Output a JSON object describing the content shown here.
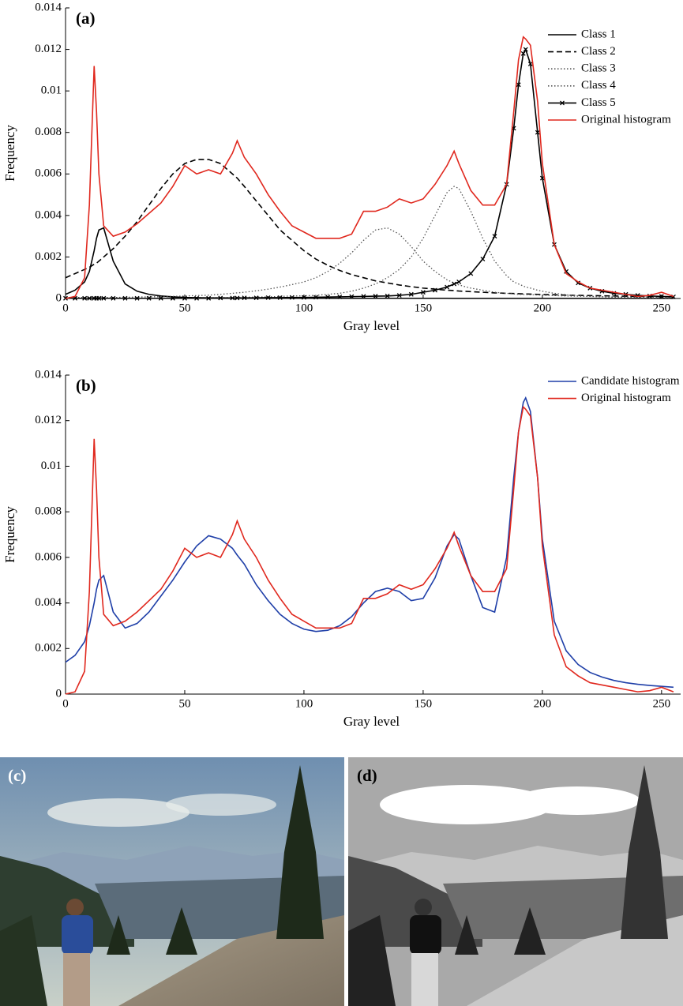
{
  "chart_data": [
    {
      "type": "line",
      "panel_label": "(a)",
      "xlabel": "Gray level",
      "ylabel": "Frequency",
      "xlim": [
        0,
        258
      ],
      "xticks": [
        0,
        50,
        100,
        150,
        200,
        250
      ],
      "ylim": [
        0,
        0.014
      ],
      "yticks": [
        0,
        0.002,
        0.004,
        0.006,
        0.008,
        0.01,
        0.012,
        0.014
      ],
      "legend": "upper right",
      "x": [
        0,
        4,
        8,
        10,
        12,
        13,
        14,
        16,
        20,
        25,
        30,
        35,
        40,
        45,
        50,
        55,
        60,
        65,
        70,
        72,
        75,
        80,
        85,
        90,
        95,
        100,
        105,
        110,
        115,
        120,
        125,
        130,
        135,
        140,
        145,
        150,
        155,
        160,
        163,
        165,
        170,
        175,
        180,
        185,
        188,
        190,
        192,
        193,
        195,
        198,
        200,
        205,
        210,
        215,
        220,
        225,
        230,
        235,
        240,
        245,
        250,
        255
      ],
      "series": [
        {
          "name": "Class 1",
          "color": "#000000",
          "style": "solid",
          "values": [
            0.0002,
            0.0004,
            0.0008,
            0.0013,
            0.0023,
            0.0029,
            0.0033,
            0.0034,
            0.0018,
            0.0007,
            0.00035,
            0.0002,
            0.00012,
            8e-05,
            5e-05,
            4e-05,
            3e-05,
            3e-05,
            2e-05,
            2e-05,
            1e-05,
            1e-05,
            1e-05,
            1e-05,
            1e-05,
            1e-05,
            1e-05,
            1e-05,
            1e-05,
            1e-05,
            1e-05,
            1e-05,
            1e-05,
            1e-05,
            1e-05,
            1e-05,
            1e-05,
            1e-05,
            5e-06,
            5e-06,
            5e-06,
            5e-06,
            5e-06,
            5e-06,
            5e-06,
            5e-06,
            5e-06,
            5e-06,
            5e-06,
            5e-06,
            5e-06,
            5e-06,
            5e-06,
            5e-06,
            5e-06,
            5e-06,
            5e-06,
            5e-06,
            5e-06,
            5e-06,
            5e-06,
            5e-06
          ]
        },
        {
          "name": "Class 2",
          "color": "#000000",
          "style": "dashed",
          "values": [
            0.001,
            0.0012,
            0.0014,
            0.0015,
            0.00165,
            0.0017,
            0.0018,
            0.002,
            0.0024,
            0.003,
            0.0037,
            0.0045,
            0.0053,
            0.006,
            0.0065,
            0.0067,
            0.0067,
            0.0065,
            0.006,
            0.0058,
            0.0054,
            0.0047,
            0.004,
            0.0033,
            0.0028,
            0.0023,
            0.0019,
            0.0016,
            0.00135,
            0.00115,
            0.001,
            0.00085,
            0.00075,
            0.00065,
            0.00057,
            0.0005,
            0.00045,
            0.0004,
            0.00038,
            0.00036,
            0.00033,
            0.0003,
            0.00027,
            0.00025,
            0.00024,
            0.00023,
            0.00022,
            0.00022,
            0.00021,
            0.0002,
            0.00019,
            0.00018,
            0.00016,
            0.00015,
            0.00014,
            0.00013,
            0.00012,
            0.00011,
            0.0001,
            0.0001,
            9e-05,
            8e-05
          ]
        },
        {
          "name": "Class 3",
          "color": "#555555",
          "style": "dotted",
          "values": [
            5e-05,
            5e-05,
            5e-05,
            5e-05,
            5e-05,
            5e-05,
            5e-05,
            5e-05,
            5e-05,
            6e-05,
            7e-05,
            8e-05,
            9e-05,
            0.0001,
            0.00012,
            0.00014,
            0.00016,
            0.0002,
            0.00025,
            0.00027,
            0.0003,
            0.00037,
            0.00045,
            0.00055,
            0.00067,
            0.0008,
            0.001,
            0.0013,
            0.0017,
            0.0022,
            0.0028,
            0.0033,
            0.0034,
            0.0031,
            0.0025,
            0.0018,
            0.0013,
            0.0009,
            0.00075,
            0.00065,
            0.0005,
            0.0004,
            0.0003,
            0.00025,
            0.00022,
            0.0002,
            0.00019,
            0.00019,
            0.00018,
            0.00017,
            0.00016,
            0.00014,
            0.00012,
            0.00011,
            0.0001,
            9e-05,
            8e-05,
            7e-05,
            6e-05,
            6e-05,
            5e-05,
            5e-05
          ]
        },
        {
          "name": "Class 4",
          "color": "#555555",
          "style": "dotted",
          "values": [
            2e-05,
            2e-05,
            2e-05,
            2e-05,
            2e-05,
            2e-05,
            2e-05,
            2e-05,
            2e-05,
            2e-05,
            2e-05,
            2e-05,
            2e-05,
            2e-05,
            2e-05,
            2e-05,
            2e-05,
            4e-05,
            5e-05,
            5e-05,
            6e-05,
            7e-05,
            8e-05,
            0.0001,
            0.00012,
            0.00013,
            0.00015,
            0.0002,
            0.00025,
            0.00035,
            0.0005,
            0.0007,
            0.001,
            0.0014,
            0.002,
            0.0029,
            0.004,
            0.0051,
            0.0054,
            0.0053,
            0.0042,
            0.0029,
            0.0018,
            0.0011,
            0.0008,
            0.0007,
            0.0006,
            0.00055,
            0.0005,
            0.0004,
            0.00035,
            0.00025,
            0.00018,
            0.00013,
            0.0001,
            8e-05,
            6e-05,
            5e-05,
            4e-05,
            3e-05,
            3e-05,
            2e-05
          ]
        },
        {
          "name": "Class 5",
          "color": "#000000",
          "style": "solid",
          "marker": "x",
          "values": [
            1e-05,
            1e-05,
            1e-05,
            1e-05,
            1e-05,
            1e-05,
            1e-05,
            1e-05,
            1e-05,
            1e-05,
            1e-05,
            1e-05,
            1e-05,
            1e-05,
            1e-05,
            1e-05,
            1e-05,
            2e-05,
            2e-05,
            2e-05,
            3e-05,
            3e-05,
            4e-05,
            4e-05,
            5e-05,
            5e-05,
            6e-05,
            7e-05,
            8e-05,
            9e-05,
            0.0001,
            0.00011,
            0.00012,
            0.00015,
            0.0002,
            0.0003,
            0.0004,
            0.00055,
            0.0007,
            0.0008,
            0.0012,
            0.0019,
            0.003,
            0.0055,
            0.0082,
            0.0103,
            0.0118,
            0.012,
            0.0113,
            0.008,
            0.0058,
            0.0026,
            0.0013,
            0.00075,
            0.0005,
            0.00035,
            0.00025,
            0.0002,
            0.00015,
            0.00012,
            0.0001,
            8e-05
          ]
        },
        {
          "name": "Original histogram",
          "color": "#e0281e",
          "style": "solid",
          "values": [
            0,
            0.0001,
            0.001,
            0.0045,
            0.0112,
            0.009,
            0.006,
            0.0035,
            0.003,
            0.0032,
            0.0036,
            0.0041,
            0.0046,
            0.0054,
            0.0064,
            0.006,
            0.0062,
            0.006,
            0.007,
            0.0076,
            0.0068,
            0.006,
            0.005,
            0.0042,
            0.0035,
            0.0032,
            0.0029,
            0.0029,
            0.0029,
            0.0031,
            0.0042,
            0.0042,
            0.0044,
            0.0048,
            0.0046,
            0.0048,
            0.0055,
            0.0064,
            0.0071,
            0.0065,
            0.0052,
            0.0045,
            0.0045,
            0.0055,
            0.009,
            0.0115,
            0.0126,
            0.0125,
            0.0122,
            0.0095,
            0.0065,
            0.0026,
            0.0012,
            0.0008,
            0.0005,
            0.0004,
            0.0003,
            0.0002,
            0.0001,
            0.00015,
            0.0003,
            0.0001
          ]
        }
      ]
    },
    {
      "type": "line",
      "panel_label": "(b)",
      "xlabel": "Gray level",
      "ylabel": "Frequency",
      "xlim": [
        0,
        258
      ],
      "xticks": [
        0,
        50,
        100,
        150,
        200,
        250
      ],
      "ylim": [
        0,
        0.014
      ],
      "yticks": [
        0,
        0.002,
        0.004,
        0.006,
        0.008,
        0.01,
        0.012,
        0.014
      ],
      "legend": "upper right",
      "x": [
        0,
        4,
        8,
        10,
        12,
        13,
        14,
        16,
        20,
        25,
        30,
        35,
        40,
        45,
        50,
        55,
        60,
        65,
        70,
        72,
        75,
        80,
        85,
        90,
        95,
        100,
        105,
        110,
        115,
        120,
        125,
        130,
        135,
        140,
        145,
        150,
        155,
        160,
        163,
        165,
        170,
        175,
        180,
        185,
        188,
        190,
        192,
        193,
        195,
        198,
        200,
        205,
        210,
        215,
        220,
        225,
        230,
        235,
        240,
        245,
        250,
        255
      ],
      "series": [
        {
          "name": "Candidate histogram",
          "color": "#1f3fa8",
          "style": "solid",
          "values": [
            0.0014,
            0.0017,
            0.0023,
            0.003,
            0.004,
            0.0046,
            0.005,
            0.0052,
            0.0036,
            0.0029,
            0.0031,
            0.0036,
            0.0043,
            0.005,
            0.0058,
            0.0065,
            0.00695,
            0.0068,
            0.0064,
            0.0061,
            0.0057,
            0.0048,
            0.0041,
            0.0035,
            0.0031,
            0.00285,
            0.00275,
            0.0028,
            0.003,
            0.0034,
            0.004,
            0.0045,
            0.00465,
            0.0045,
            0.0041,
            0.0042,
            0.0051,
            0.0065,
            0.007,
            0.0068,
            0.0052,
            0.0038,
            0.0036,
            0.006,
            0.0095,
            0.0115,
            0.0128,
            0.013,
            0.0124,
            0.0095,
            0.0068,
            0.0032,
            0.0019,
            0.0013,
            0.00095,
            0.00075,
            0.0006,
            0.0005,
            0.00043,
            0.00038,
            0.00034,
            0.0003
          ]
        },
        {
          "name": "Original histogram",
          "color": "#e0281e",
          "style": "solid",
          "values": [
            0,
            0.0001,
            0.001,
            0.0045,
            0.0112,
            0.009,
            0.006,
            0.0035,
            0.003,
            0.0032,
            0.0036,
            0.0041,
            0.0046,
            0.0054,
            0.0064,
            0.006,
            0.0062,
            0.006,
            0.007,
            0.0076,
            0.0068,
            0.006,
            0.005,
            0.0042,
            0.0035,
            0.0032,
            0.0029,
            0.0029,
            0.0029,
            0.0031,
            0.0042,
            0.0042,
            0.0044,
            0.0048,
            0.0046,
            0.0048,
            0.0055,
            0.0064,
            0.0071,
            0.0065,
            0.0052,
            0.0045,
            0.0045,
            0.0055,
            0.009,
            0.0115,
            0.0126,
            0.0125,
            0.0122,
            0.0095,
            0.0065,
            0.0026,
            0.0012,
            0.0008,
            0.0005,
            0.0004,
            0.0003,
            0.0002,
            0.0001,
            0.00015,
            0.0003,
            0.0001
          ]
        }
      ]
    }
  ],
  "panels": [
    {
      "label": "(c)"
    },
    {
      "label": "(d)"
    }
  ]
}
